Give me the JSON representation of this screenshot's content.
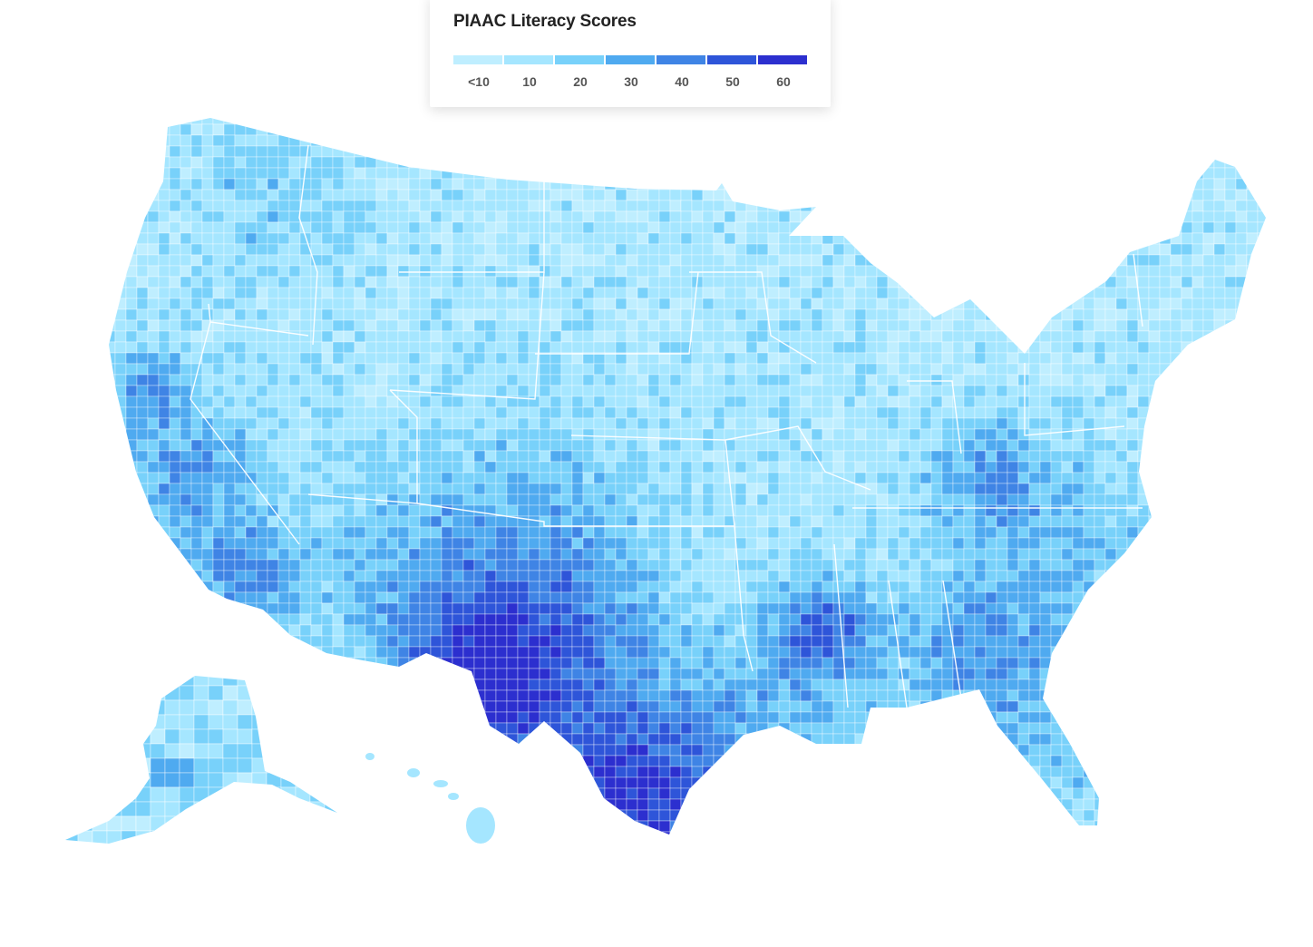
{
  "legend": {
    "title": "PIAAC Literacy Scores",
    "bins": [
      {
        "label": "<10",
        "color": "#bfeeff"
      },
      {
        "label": "10",
        "color": "#a5e6ff"
      },
      {
        "label": "20",
        "color": "#78d1fa"
      },
      {
        "label": "30",
        "color": "#4faaf0"
      },
      {
        "label": "40",
        "color": "#3f84e5"
      },
      {
        "label": "50",
        "color": "#2e55d9"
      },
      {
        "label": "60",
        "color": "#2c2fcf"
      }
    ]
  },
  "map": {
    "subject": "US counties choropleth",
    "regions": [
      "contiguous-us",
      "alaska",
      "hawaii"
    ],
    "border_color": "#ffffff"
  }
}
